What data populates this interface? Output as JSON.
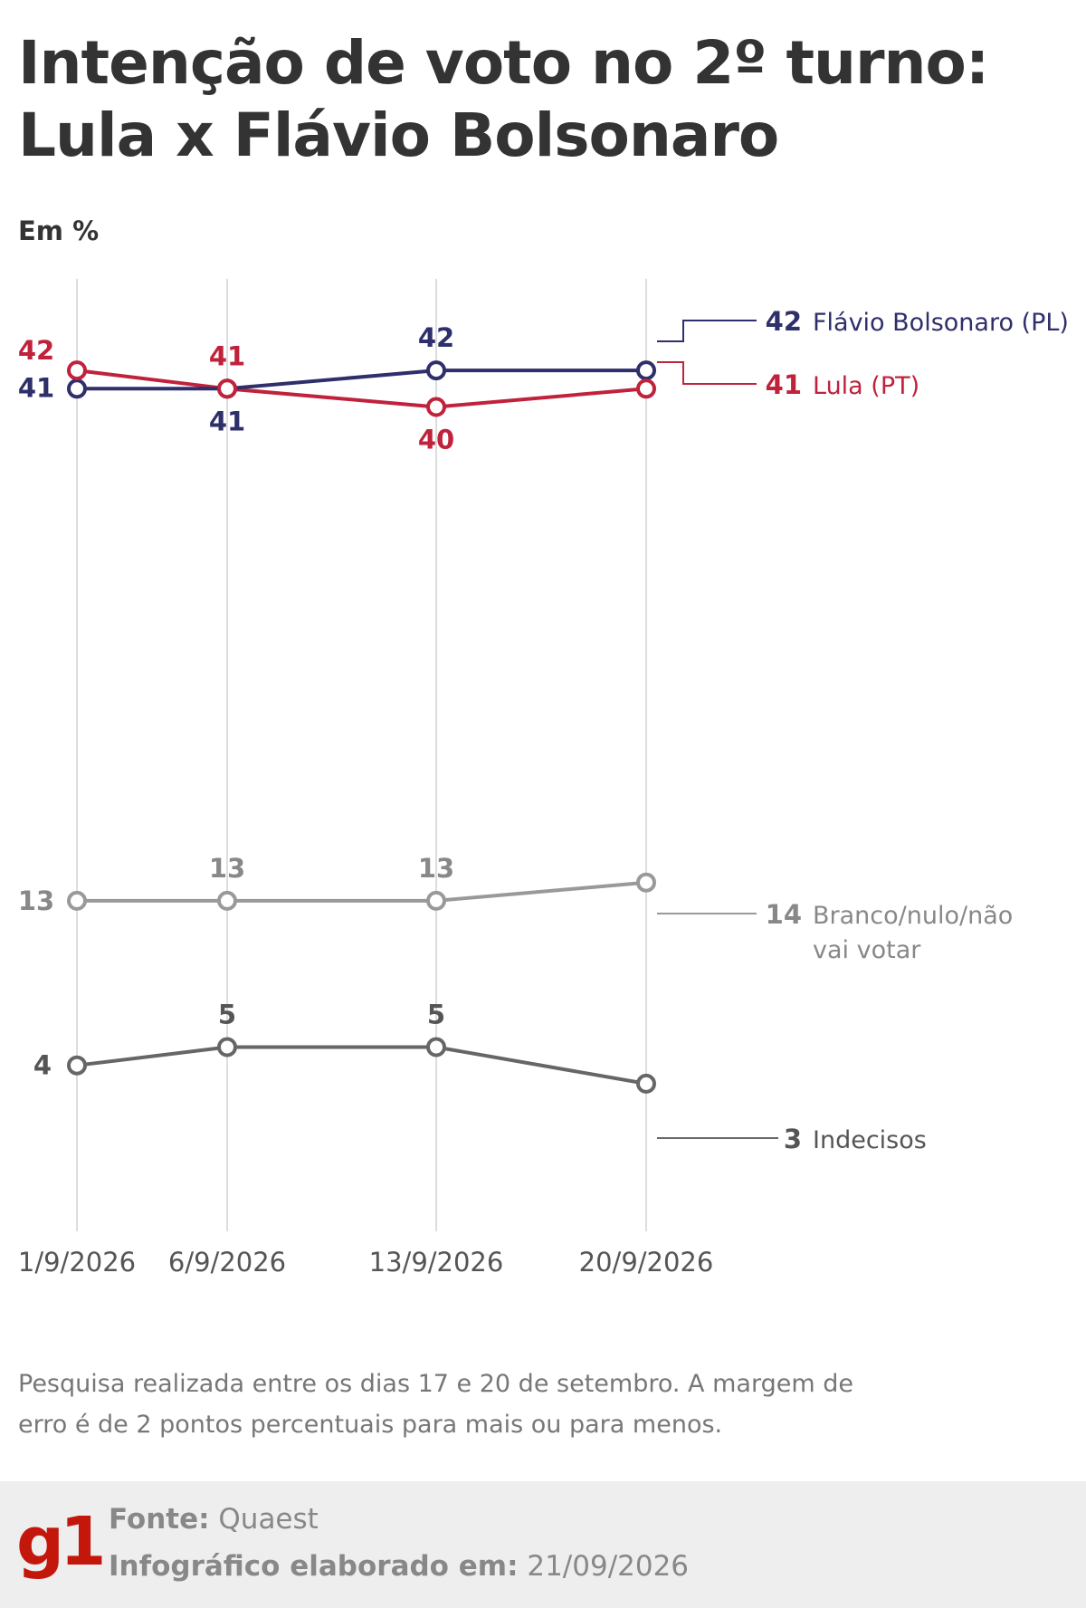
{
  "title_line1": "Intenção de voto no 2º turno:",
  "title_line2": "Lula x Flávio Bolsonaro",
  "unit_label": "Em %",
  "note": "Pesquisa realizada entre os dias 17 e 20 de setembro. A margem de erro é de 2 pontos percentuais para mais ou para menos.",
  "footer": {
    "logo": "g1",
    "source_label": "Fonte:",
    "source_value": "Quaest",
    "date_label": "Infográfico elaborado em:",
    "date_value": "21/09/2026"
  },
  "chart_data": {
    "type": "line",
    "x": [
      "1/9/2026",
      "6/9/2026",
      "13/9/2026",
      "20/9/2026"
    ],
    "series": [
      {
        "name": "Flávio Bolsonaro (PL)",
        "values": [
          41,
          41,
          42,
          42
        ],
        "color": "#2e2f6b"
      },
      {
        "name": "Lula (PT)",
        "values": [
          42,
          41,
          40,
          41
        ],
        "color": "#c0223b"
      },
      {
        "name": "Branco/nulo/não vai votar",
        "values": [
          13,
          13,
          13,
          14
        ],
        "color": "#999999"
      },
      {
        "name": "Indecisos",
        "values": [
          4,
          5,
          5,
          3
        ],
        "color": "#666666"
      }
    ],
    "grid": "vertical",
    "legend": "right, end labels"
  }
}
